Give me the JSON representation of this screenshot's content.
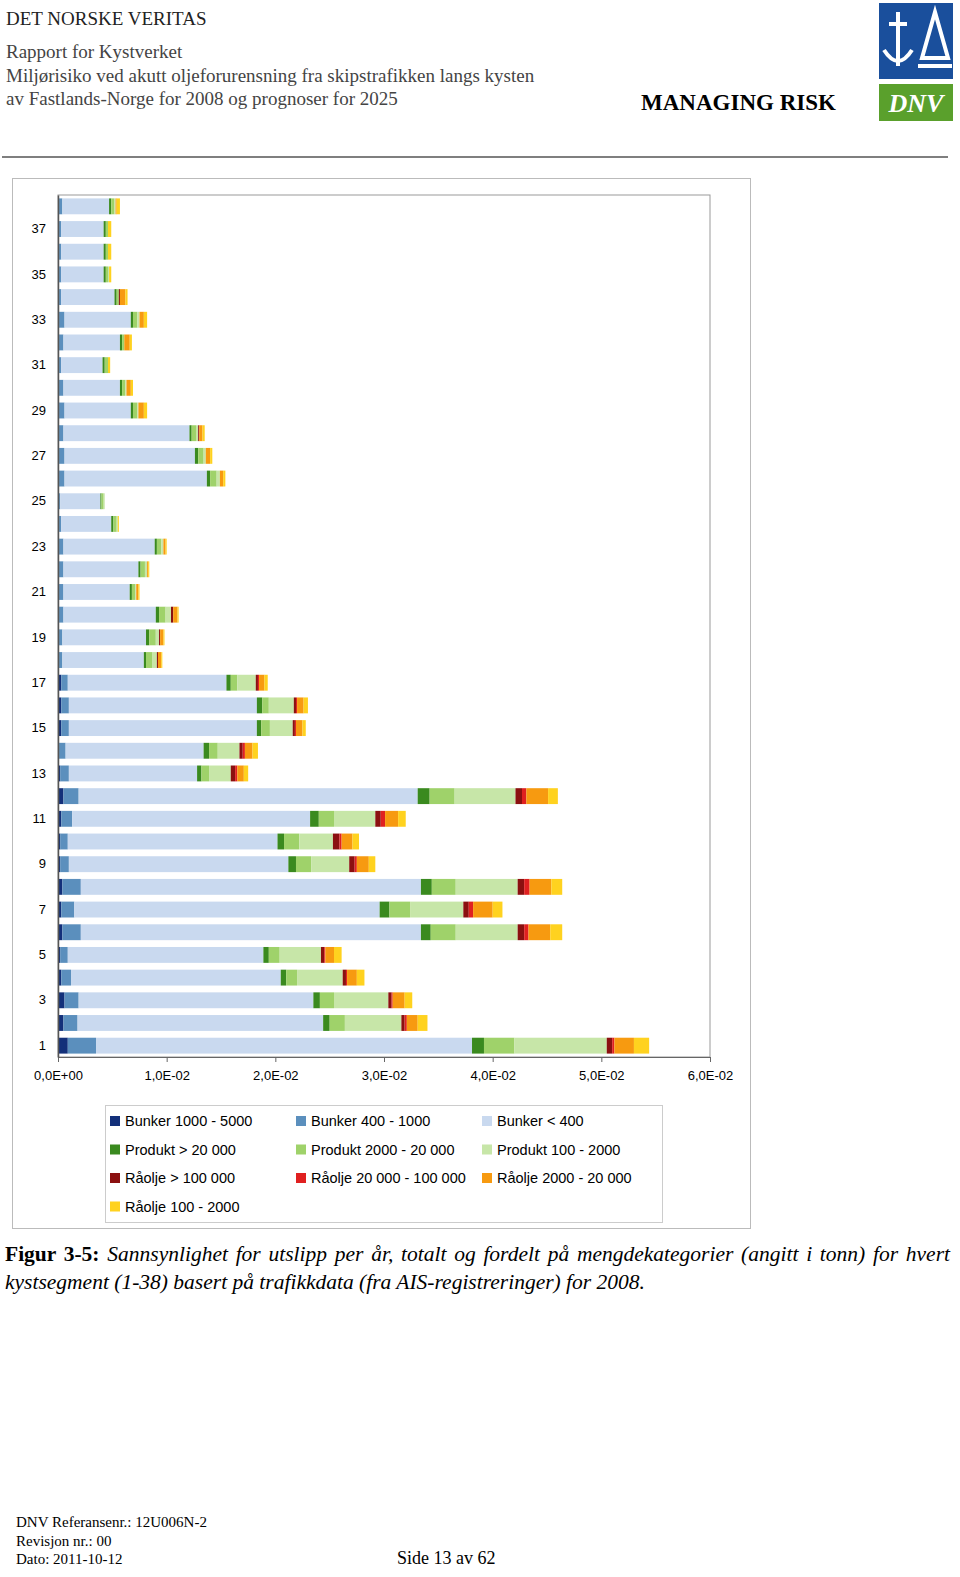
{
  "header": {
    "company": "DET NORSKE VERITAS",
    "lines": [
      "Rapport for Kystverket",
      "Miljørisiko ved akutt oljeforurensning fra skipstrafikken langs kysten",
      "av Fastlands-Norge for 2008 og prognoser for 2025"
    ],
    "slogan": "MANAGING RISK",
    "logo_text": "DNV"
  },
  "chart_data": {
    "type": "bar",
    "orientation": "horizontal",
    "stacked": true,
    "grid": false,
    "legend": "bottom",
    "categories": [
      "1",
      null,
      "3",
      null,
      "5",
      null,
      "7",
      null,
      "9",
      null,
      "11",
      null,
      "13",
      null,
      "15",
      null,
      "17",
      null,
      "19",
      null,
      "21",
      null,
      "23",
      null,
      "25",
      null,
      "27",
      null,
      "29",
      null,
      "31",
      null,
      "33",
      null,
      "35",
      null,
      "37",
      null
    ],
    "xlim": [
      0,
      0.06
    ],
    "xticks": [
      {
        "value": 0,
        "label": "0,0E+00"
      },
      {
        "value": 0.01,
        "label": "1,0E-02"
      },
      {
        "value": 0.02,
        "label": "2,0E-02"
      },
      {
        "value": 0.03,
        "label": "3,0E-02"
      },
      {
        "value": 0.04,
        "label": "4,0E-02"
      },
      {
        "value": 0.05,
        "label": "5,0E-02"
      },
      {
        "value": 0.06,
        "label": "6,0E-02"
      }
    ],
    "series": [
      {
        "name": "Bunker 1000 - 5000",
        "color": "#13307a",
        "values": [
          0.0009,
          0.0005,
          0.0006,
          0.0003,
          0.0002,
          0.0004,
          0.0003,
          0.0004,
          0.0002,
          0.0002,
          0.0003,
          0.0005,
          0.0002,
          0.0001,
          0.0003,
          0.0003,
          0.0003,
          0.0001,
          0.0001,
          0.0001,
          0.0001,
          0.0001,
          0.0001,
          0.0001,
          0.0001,
          0.0001,
          0.0001,
          0.0001,
          0.0001,
          0.0001,
          0.0001,
          0.0001,
          0.0001,
          0.0001,
          0.0001,
          0.0001,
          0.0001,
          0.0001
        ]
      },
      {
        "name": "Bunker 400 - 1000",
        "color": "#5b8fbd",
        "values": [
          0.0026,
          0.0013,
          0.0013,
          0.0009,
          0.0007,
          0.0017,
          0.0012,
          0.0017,
          0.0008,
          0.0007,
          0.001,
          0.0014,
          0.0008,
          0.0006,
          0.0007,
          0.0007,
          0.0006,
          0.0003,
          0.0003,
          0.0004,
          0.0004,
          0.0004,
          0.0004,
          0.0002,
          0.0001,
          0.0005,
          0.0005,
          0.0004,
          0.0005,
          0.0004,
          0.0002,
          0.0004,
          0.0005,
          0.0002,
          0.0002,
          0.0002,
          0.0002,
          0.0003
        ]
      },
      {
        "name": "Bunker < 400",
        "color": "#c9d9ef",
        "values": [
          0.0346,
          0.0226,
          0.0216,
          0.0193,
          0.018,
          0.0313,
          0.0281,
          0.0313,
          0.0202,
          0.0193,
          0.0219,
          0.0312,
          0.0118,
          0.0127,
          0.0173,
          0.0173,
          0.0146,
          0.0075,
          0.0077,
          0.0085,
          0.0061,
          0.0069,
          0.0084,
          0.0046,
          0.0037,
          0.0131,
          0.012,
          0.0116,
          0.0061,
          0.0052,
          0.0038,
          0.0052,
          0.0061,
          0.0049,
          0.0039,
          0.0039,
          0.0039,
          0.0043
        ]
      },
      {
        "name": "Produkt > 20 000",
        "color": "#3a8a1f",
        "values": [
          0.0011,
          0.0006,
          0.0006,
          0.0005,
          0.0005,
          0.0009,
          0.0009,
          0.001,
          0.0007,
          0.0006,
          0.0008,
          0.0011,
          0.0004,
          0.0005,
          0.0004,
          0.0005,
          0.0004,
          0.0002,
          0.0003,
          0.0003,
          0.0002,
          0.0002,
          0.0002,
          0.0002,
          0.0001,
          0.0003,
          0.0003,
          0.0002,
          0.0002,
          0.0002,
          0.0002,
          0.0002,
          0.0002,
          0.0002,
          0.0002,
          0.0002,
          0.0002,
          0.0002
        ]
      },
      {
        "name": "Produkt 2000 - 20 000",
        "color": "#9fd26a",
        "values": [
          0.0028,
          0.0014,
          0.0013,
          0.001,
          0.001,
          0.0023,
          0.0019,
          0.0022,
          0.0014,
          0.0014,
          0.0014,
          0.0023,
          0.0007,
          0.0008,
          0.0008,
          0.0006,
          0.0006,
          0.0006,
          0.0006,
          0.0006,
          0.0003,
          0.0004,
          0.0004,
          0.0003,
          0.0002,
          0.0006,
          0.0005,
          0.0004,
          0.0004,
          0.0003,
          0.0003,
          0.0002,
          0.0004,
          0.0002,
          0.0002,
          0.0002,
          0.0002,
          0.0003
        ]
      },
      {
        "name": "Produkt 100 - 2000",
        "color": "#c7e6a8",
        "values": [
          0.0085,
          0.0052,
          0.005,
          0.0042,
          0.0038,
          0.0057,
          0.0049,
          0.0057,
          0.0035,
          0.0031,
          0.0038,
          0.0056,
          0.002,
          0.002,
          0.0021,
          0.0023,
          0.0017,
          0.0004,
          0.0003,
          0.0005,
          0.0001,
          0.0002,
          0.0002,
          0.0001,
          0.0001,
          0.0003,
          0.0002,
          0.0002,
          0.0001,
          0.0001,
          0,
          0,
          0.0002,
          0,
          0.0001,
          0,
          0,
          0.0001
        ]
      },
      {
        "name": "Råolje > 100 000",
        "color": "#8b1010",
        "values": [
          0.0005,
          0.0003,
          0.0003,
          0.0003,
          0.0003,
          0.0006,
          0.0005,
          0.0006,
          0.0005,
          0.0006,
          0.0005,
          0.0006,
          0.0004,
          0.0003,
          0.0002,
          0.0002,
          0.0002,
          0.0001,
          0.0001,
          0.0002,
          0,
          0,
          0,
          0,
          0,
          0,
          0,
          0.0001,
          0,
          0,
          0,
          0,
          0,
          0.0001,
          0,
          0,
          0,
          0
        ]
      },
      {
        "name": "Råolje 20 000 - 100 000",
        "color": "#e02020",
        "values": [
          0.0002,
          0.0002,
          0.0001,
          0.0001,
          0.0001,
          0.0004,
          0.0004,
          0.0005,
          0.0002,
          0.0002,
          0.0004,
          0.0004,
          0.0002,
          0.0002,
          0.0001,
          0.0001,
          0.0001,
          0,
          0,
          0,
          0,
          0,
          0,
          0,
          0,
          0,
          0,
          0,
          0,
          0,
          0,
          0,
          0,
          0,
          0,
          0,
          0,
          0
        ]
      },
      {
        "name": "Råolje 2000 - 20 000",
        "color": "#f79a10",
        "values": [
          0.0018,
          0.001,
          0.0011,
          0.0009,
          0.0008,
          0.002,
          0.0018,
          0.002,
          0.0011,
          0.001,
          0.0012,
          0.002,
          0.0006,
          0.0007,
          0.0006,
          0.0006,
          0.0005,
          0.0003,
          0.0003,
          0.0004,
          0.0002,
          0.0001,
          0.0002,
          0,
          0,
          0.0003,
          0.0004,
          0.0003,
          0.0005,
          0.0004,
          0,
          0.0005,
          0.0004,
          0.0005,
          0,
          0,
          0,
          0.0001
        ]
      },
      {
        "name": "Råolje 100 - 2000",
        "color": "#ffd21f",
        "values": [
          0.0014,
          0.0009,
          0.0007,
          0.0007,
          0.0007,
          0.0011,
          0.0009,
          0.001,
          0.0006,
          0.0006,
          0.0007,
          0.0009,
          0.0004,
          0.0005,
          0.0003,
          0.0004,
          0.0003,
          0.0001,
          0.0001,
          0.0001,
          0.0001,
          0.0001,
          0.0001,
          0.0001,
          0,
          0.0002,
          0.0002,
          0.0002,
          0.0003,
          0.0002,
          0.0002,
          0.0002,
          0.0003,
          0.0002,
          0.0002,
          0.0003,
          0.0003,
          0.0003
        ]
      }
    ]
  },
  "caption": {
    "label": "Figur 3-5:",
    "text": "Sannsynlighet for utslipp per år, totalt og fordelt på mengdekategorier (angitt i tonn) for hvert kystsegment (1-38) basert på trafikkdata (fra AIS-registreringer) for 2008."
  },
  "footer": {
    "lines": [
      "DNV Referansenr.: 12U006N-2",
      "Revisjon nr.: 00",
      "Dato: 2011-10-12"
    ],
    "page": "Side 13 av 62"
  }
}
